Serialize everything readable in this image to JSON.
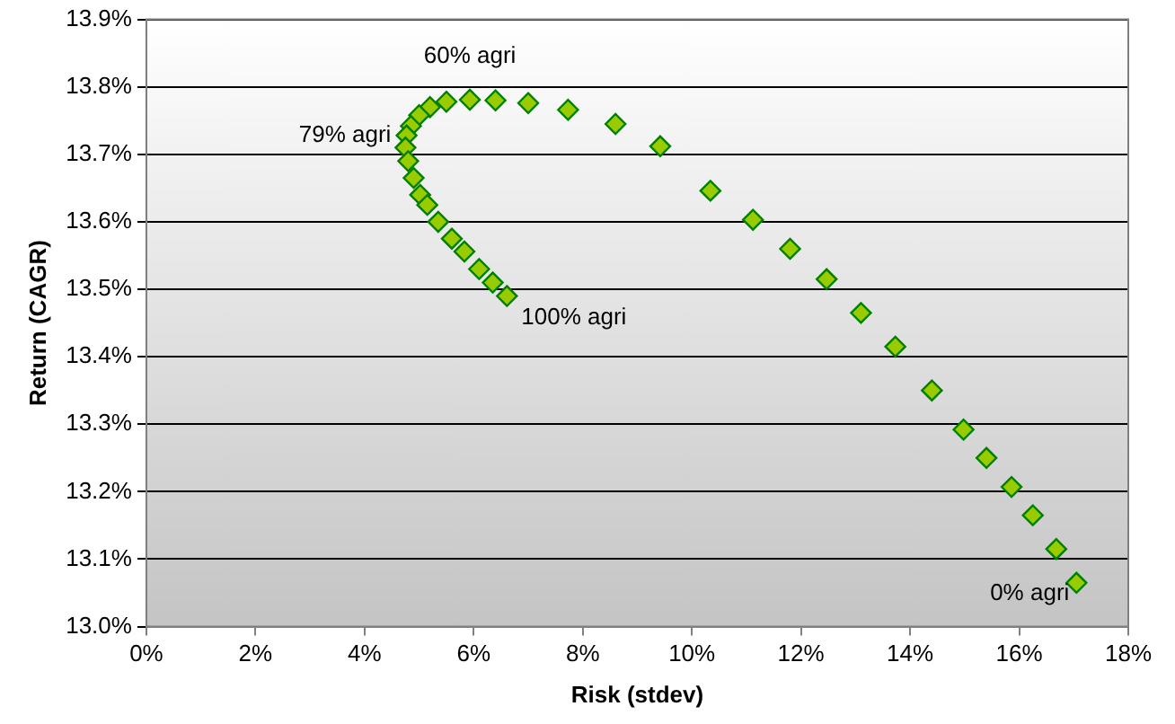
{
  "chart_data": {
    "type": "scatter",
    "xlabel": "Risk (stdev)",
    "ylabel": "Return (CAGR)",
    "marker": "diamond",
    "grid": "y",
    "legend": false,
    "xlim": [
      0,
      18
    ],
    "ylim": [
      13.0,
      13.9
    ],
    "xticks": [
      {
        "value": 0,
        "label": "0%"
      },
      {
        "value": 2,
        "label": "2%"
      },
      {
        "value": 4,
        "label": "4%"
      },
      {
        "value": 6,
        "label": "6%"
      },
      {
        "value": 8,
        "label": "8%"
      },
      {
        "value": 10,
        "label": "10%"
      },
      {
        "value": 12,
        "label": "12%"
      },
      {
        "value": 14,
        "label": "14%"
      },
      {
        "value": 16,
        "label": "16%"
      },
      {
        "value": 18,
        "label": "18%"
      }
    ],
    "yticks": [
      {
        "value": 13.0,
        "label": "13.0%"
      },
      {
        "value": 13.1,
        "label": "13.1%"
      },
      {
        "value": 13.2,
        "label": "13.2%"
      },
      {
        "value": 13.3,
        "label": "13.3%"
      },
      {
        "value": 13.4,
        "label": "13.4%"
      },
      {
        "value": 13.5,
        "label": "13.5%"
      },
      {
        "value": 13.6,
        "label": "13.6%"
      },
      {
        "value": 13.7,
        "label": "13.7%"
      },
      {
        "value": 13.8,
        "label": "13.8%"
      },
      {
        "value": 13.9,
        "label": "13.9%"
      }
    ],
    "series": [
      {
        "color": "#99cc00",
        "x": [
          17.05,
          16.68,
          16.25,
          15.86,
          15.4,
          14.98,
          14.4,
          13.73,
          13.1,
          12.47,
          11.8,
          11.12,
          10.34,
          9.42,
          8.6,
          7.73,
          7.0,
          6.4,
          5.93,
          5.5,
          5.2,
          5.0,
          4.85,
          4.77,
          4.75,
          4.8,
          4.9,
          5.02,
          5.15,
          5.35,
          5.6,
          5.83,
          6.1,
          6.35,
          6.61
        ],
        "values": [
          13.065,
          13.115,
          13.165,
          13.207,
          13.25,
          13.292,
          13.35,
          13.415,
          13.465,
          13.515,
          13.56,
          13.603,
          13.646,
          13.712,
          13.745,
          13.766,
          13.776,
          13.78,
          13.781,
          13.778,
          13.77,
          13.758,
          13.742,
          13.728,
          13.71,
          13.69,
          13.665,
          13.64,
          13.625,
          13.6,
          13.575,
          13.556,
          13.53,
          13.51,
          13.49
        ]
      }
    ],
    "annotations": [
      {
        "text": "0% agri",
        "x": 17.05,
        "y": 13.065
      },
      {
        "text": "60% agri",
        "x": 5.93,
        "y": 13.781
      },
      {
        "text": "79% agri",
        "x": 4.75,
        "y": 13.728
      },
      {
        "text": "100% agri",
        "x": 6.61,
        "y": 13.49
      }
    ]
  }
}
